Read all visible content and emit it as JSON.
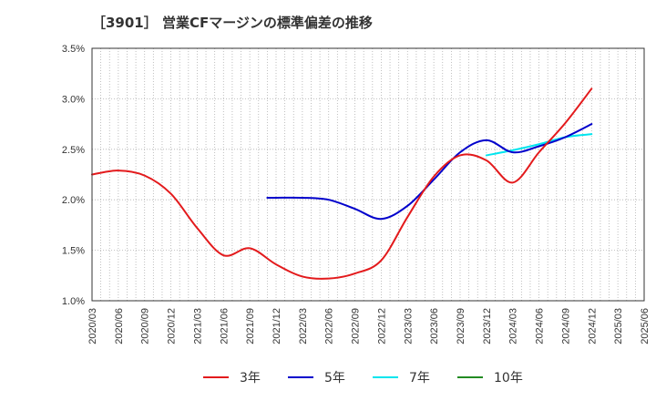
{
  "chart_data": {
    "type": "line",
    "title": "［3901］ 営業CFマージンの標準偏差の推移",
    "xlabel": "",
    "ylabel": "",
    "x": [
      "2020/03",
      "2020/06",
      "2020/09",
      "2020/12",
      "2021/03",
      "2021/06",
      "2021/09",
      "2021/12",
      "2022/03",
      "2022/06",
      "2022/09",
      "2022/12",
      "2023/03",
      "2023/06",
      "2023/09",
      "2023/12",
      "2024/03",
      "2024/06",
      "2024/09",
      "2024/12",
      "2025/03",
      "2025/06"
    ],
    "y_ticks": [
      "1.0%",
      "1.5%",
      "2.0%",
      "2.5%",
      "3.0%",
      "3.5%"
    ],
    "ylim": [
      1.0,
      3.5
    ],
    "y_unit": "%",
    "grid": true,
    "legend_position": "bottom",
    "series": [
      {
        "name": "3年",
        "color": "#e31a1c",
        "points": [
          [
            "2020/03",
            2.25
          ],
          [
            "2020/06",
            2.29
          ],
          [
            "2020/09",
            2.24
          ],
          [
            "2020/12",
            2.06
          ],
          [
            "2021/03",
            1.72
          ],
          [
            "2021/06",
            1.45
          ],
          [
            "2021/09",
            1.52
          ],
          [
            "2021/12",
            1.36
          ],
          [
            "2022/03",
            1.24
          ],
          [
            "2022/06",
            1.22
          ],
          [
            "2022/09",
            1.27
          ],
          [
            "2022/12",
            1.4
          ],
          [
            "2023/03",
            1.83
          ],
          [
            "2023/06",
            2.23
          ],
          [
            "2023/09",
            2.44
          ],
          [
            "2023/12",
            2.39
          ],
          [
            "2024/03",
            2.17
          ],
          [
            "2024/06",
            2.47
          ],
          [
            "2024/09",
            2.76
          ],
          [
            "2024/12",
            3.1
          ]
        ]
      },
      {
        "name": "5年",
        "color": "#0000cc",
        "points": [
          [
            "2021/11",
            2.02
          ],
          [
            "2021/12",
            2.02
          ],
          [
            "2022/03",
            2.02
          ],
          [
            "2022/06",
            2.0
          ],
          [
            "2022/09",
            1.91
          ],
          [
            "2022/12",
            1.81
          ],
          [
            "2023/03",
            1.94
          ],
          [
            "2023/06",
            2.2
          ],
          [
            "2023/09",
            2.47
          ],
          [
            "2023/12",
            2.59
          ],
          [
            "2024/03",
            2.47
          ],
          [
            "2024/06",
            2.53
          ],
          [
            "2024/09",
            2.62
          ],
          [
            "2024/12",
            2.75
          ]
        ]
      },
      {
        "name": "7年",
        "color": "#00e5ee",
        "points": [
          [
            "2023/12",
            2.44
          ],
          [
            "2024/03",
            2.49
          ],
          [
            "2024/06",
            2.55
          ],
          [
            "2024/09",
            2.62
          ],
          [
            "2024/12",
            2.65
          ]
        ]
      },
      {
        "name": "10年",
        "color": "#228b22",
        "points": []
      }
    ]
  }
}
